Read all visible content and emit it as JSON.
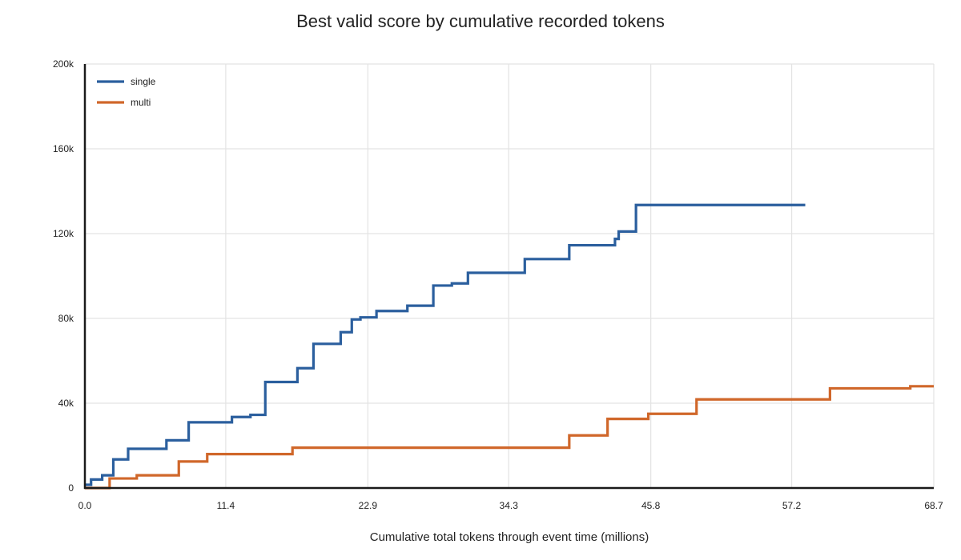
{
  "chart_data": {
    "type": "line",
    "step": true,
    "title": "Best valid score by cumulative recorded tokens",
    "xlabel": "Cumulative total tokens through event time (millions)",
    "ylabel": "",
    "xlim": [
      0,
      68.7
    ],
    "ylim": [
      0,
      200000
    ],
    "x_ticks": [
      "0.0",
      "11.4",
      "22.9",
      "34.3",
      "45.8",
      "57.2",
      "68.7"
    ],
    "x_tick_values": [
      0,
      11.4,
      22.9,
      34.3,
      45.8,
      57.2,
      68.7
    ],
    "y_ticks": [
      "0",
      "40k",
      "80k",
      "120k",
      "160k",
      "200k"
    ],
    "y_tick_values": [
      0,
      40000,
      80000,
      120000,
      160000,
      200000
    ],
    "grid": true,
    "legend": "top-left",
    "series": [
      {
        "name": "single",
        "color": "#2b5f9e",
        "points": [
          [
            0,
            1500
          ],
          [
            0.5,
            4000
          ],
          [
            1.4,
            6000
          ],
          [
            2.3,
            13500
          ],
          [
            3.5,
            18500
          ],
          [
            6.6,
            22500
          ],
          [
            8.4,
            31000
          ],
          [
            11.9,
            33500
          ],
          [
            13.4,
            34500
          ],
          [
            14.6,
            50000
          ],
          [
            17.2,
            56500
          ],
          [
            18.5,
            68000
          ],
          [
            20.7,
            73500
          ],
          [
            21.6,
            79500
          ],
          [
            22.3,
            80500
          ],
          [
            23.6,
            83500
          ],
          [
            26.1,
            86000
          ],
          [
            28.2,
            95500
          ],
          [
            29.7,
            96500
          ],
          [
            31.0,
            101500
          ],
          [
            35.6,
            108000
          ],
          [
            39.2,
            114500
          ],
          [
            42.9,
            117500
          ],
          [
            43.2,
            121000
          ],
          [
            44.6,
            133500
          ],
          [
            58.3,
            133500
          ]
        ]
      },
      {
        "name": "multi",
        "color": "#d0672a",
        "points": [
          [
            0,
            0
          ],
          [
            2.0,
            4500
          ],
          [
            4.2,
            6000
          ],
          [
            7.6,
            12500
          ],
          [
            9.9,
            16000
          ],
          [
            16.8,
            19000
          ],
          [
            39.2,
            24800
          ],
          [
            42.3,
            32600
          ],
          [
            45.6,
            35000
          ],
          [
            49.5,
            41800
          ],
          [
            60.3,
            47000
          ],
          [
            66.8,
            48000
          ],
          [
            68.7,
            48000
          ]
        ]
      }
    ]
  }
}
